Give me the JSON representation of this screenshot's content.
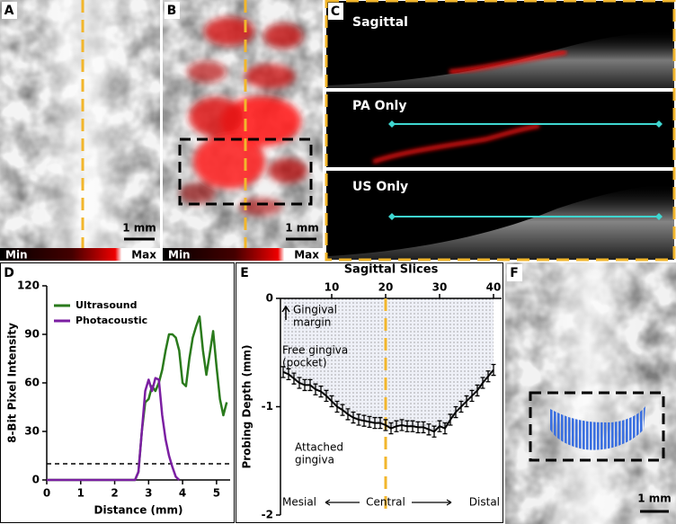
{
  "panels": {
    "a": {
      "letter": "A",
      "scale": "1 mm",
      "cbar_min": "Min",
      "cbar_max": "Max"
    },
    "b": {
      "letter": "B",
      "scale": "1 mm",
      "cbar_min": "Min",
      "cbar_max": "Max"
    },
    "c": {
      "letter": "C",
      "views": [
        "Sagittal",
        "PA Only",
        "US Only"
      ]
    },
    "f": {
      "letter": "F",
      "scale": "1 mm"
    }
  },
  "chart_data": [
    {
      "panel": "D",
      "type": "line",
      "x_label": "Distance (mm)",
      "y_label": "8-Bit Pixel Intensity",
      "x": [
        0,
        0.5,
        1,
        1.5,
        2,
        2.4,
        2.6,
        2.7,
        2.8,
        2.9,
        3.0,
        3.1,
        3.2,
        3.3,
        3.4,
        3.5,
        3.6,
        3.7,
        3.8,
        3.9,
        4.0,
        4.1,
        4.2,
        4.3,
        4.4,
        4.5,
        4.6,
        4.7,
        4.8,
        4.9,
        5.0,
        5.1,
        5.2,
        5.3
      ],
      "series": [
        {
          "name": "Ultrasound",
          "color": "#2a7a1c",
          "values": [
            0,
            0,
            0,
            0,
            0,
            0,
            0,
            5,
            30,
            48,
            50,
            58,
            55,
            60,
            68,
            80,
            90,
            90,
            88,
            80,
            60,
            58,
            75,
            88,
            95,
            101,
            80,
            65,
            78,
            92,
            70,
            50,
            40,
            48
          ]
        },
        {
          "name": "Photacoustic",
          "color": "#7b1fa2",
          "values": [
            0,
            0,
            0,
            0,
            0,
            0,
            0,
            5,
            30,
            55,
            62,
            55,
            63,
            62,
            40,
            25,
            15,
            8,
            2,
            0,
            null,
            null,
            null,
            null,
            null,
            null,
            null,
            null,
            null,
            null,
            null,
            null,
            null,
            null
          ]
        }
      ],
      "xlim": [
        0,
        5.4
      ],
      "ylim": [
        0,
        120
      ],
      "xticks": [
        0,
        1,
        2,
        3,
        4,
        5
      ],
      "yticks": [
        0,
        30,
        60,
        90,
        120
      ],
      "threshold": 10,
      "legend": "upper left"
    },
    {
      "panel": "E",
      "type": "errorbar",
      "x_label": "Sagittal Slices",
      "y_label": "Probing Depth (mm)",
      "x": [
        1,
        2,
        3,
        4,
        5,
        6,
        7,
        8,
        9,
        10,
        11,
        12,
        13,
        14,
        15,
        16,
        17,
        18,
        19,
        20,
        21,
        22,
        23,
        24,
        25,
        26,
        27,
        28,
        29,
        30,
        31,
        32,
        33,
        34,
        35,
        36,
        37,
        38,
        39,
        40
      ],
      "values": [
        -0.68,
        -0.7,
        -0.74,
        -0.78,
        -0.8,
        -0.8,
        -0.84,
        -0.86,
        -0.9,
        -0.95,
        -1.0,
        -1.03,
        -1.07,
        -1.1,
        -1.12,
        -1.13,
        -1.14,
        -1.15,
        -1.15,
        -1.17,
        -1.2,
        -1.18,
        -1.17,
        -1.18,
        -1.18,
        -1.19,
        -1.19,
        -1.21,
        -1.23,
        -1.18,
        -1.2,
        -1.12,
        -1.05,
        -1.0,
        -0.95,
        -0.9,
        -0.85,
        -0.78,
        -0.72,
        -0.66
      ],
      "errors": [
        0.05,
        0.05,
        0.05,
        0.05,
        0.05,
        0.05,
        0.05,
        0.05,
        0.05,
        0.05,
        0.05,
        0.05,
        0.05,
        0.05,
        0.05,
        0.05,
        0.05,
        0.05,
        0.05,
        0.05,
        0.05,
        0.05,
        0.05,
        0.05,
        0.05,
        0.05,
        0.05,
        0.05,
        0.05,
        0.05,
        0.05,
        0.05,
        0.05,
        0.05,
        0.05,
        0.05,
        0.05,
        0.05,
        0.05,
        0.05
      ],
      "color": "#000000",
      "xlim": [
        0.5,
        41.5
      ],
      "ylim": [
        -2,
        0
      ],
      "xticks": [
        10,
        20,
        30,
        40
      ],
      "yticks": [
        0,
        -1,
        -2
      ],
      "marker_x": 20,
      "annotations": {
        "gingival_margin": [
          "Gingival",
          "margin"
        ],
        "free_gingiva": [
          "Free gingiva",
          "(pocket)"
        ],
        "attached_gingiva": [
          "Attached",
          "gingiva"
        ]
      },
      "bottom_labels": [
        "Mesial",
        "Central",
        "Distal"
      ]
    }
  ]
}
